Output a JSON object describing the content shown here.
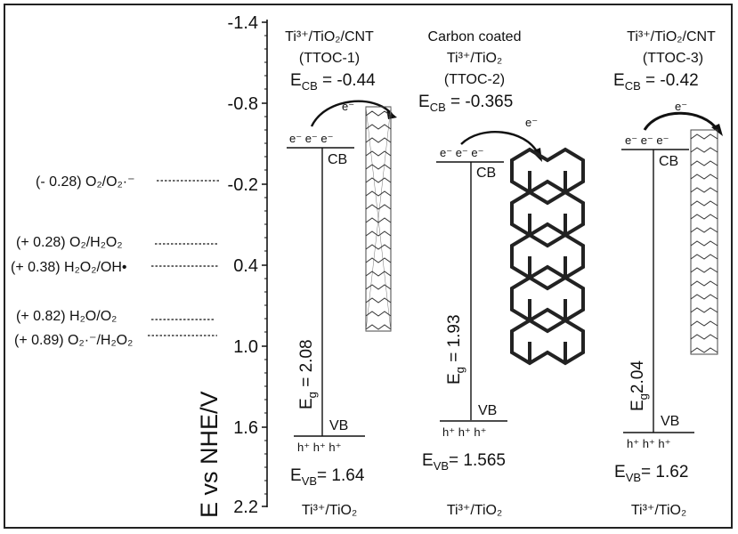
{
  "axis": {
    "label": "E vs NHE/V",
    "ticks": [
      "-1.4",
      "-0.8",
      "-0.2",
      "0.4",
      "1.0",
      "1.6",
      "2.2"
    ]
  },
  "redox_couples": [
    {
      "text": "(- 0.28) O₂/O₂·⁻"
    },
    {
      "text": "(+ 0.28) O₂/H₂O₂"
    },
    {
      "text": "(+ 0.38) H₂O₂/OH•"
    },
    {
      "text": "(+ 0.82) H₂O/O₂"
    },
    {
      "text": "(+ 0.89) O₂·⁻/H₂O₂"
    }
  ],
  "panels": [
    {
      "title_1": "Ti³⁺/TiO₂/CNT",
      "title_2": "",
      "code": "(TTOC-1)",
      "ecb": "Eₕ₆ = -0.44",
      "ecb_main": "E",
      "ecb_sub": "CB",
      "ecb_val": " = -0.44",
      "eg": "2.08",
      "evb_val": "= 1.64",
      "carrier_e": "e⁻  e⁻  e⁻",
      "carrier_h": "h⁺  h⁺  h⁺",
      "cb": "CB",
      "vb": "VB",
      "transfer_e": "e⁻",
      "base": "Ti³⁺/TiO₂"
    },
    {
      "title_1": "Carbon coated",
      "title_2": "Ti³⁺/TiO₂",
      "code": "(TTOC-2)",
      "ecb_main": "E",
      "ecb_sub": "CB",
      "ecb_val": " = -0.365",
      "eg": "1.93",
      "evb_val": "= 1.565",
      "carrier_e": "e⁻  e⁻  e⁻",
      "carrier_h": "h⁺  h⁺  h⁺",
      "cb": "CB",
      "vb": "VB",
      "transfer_e": "e⁻",
      "base": "Ti³⁺/TiO₂"
    },
    {
      "title_1": "Ti³⁺/TiO₂/CNT",
      "title_2": "",
      "code": "(TTOC-3)",
      "ecb_main": "E",
      "ecb_sub": "CB",
      "ecb_val": " = -0.42",
      "eg": "2.04",
      "evb_val": "= 1.62",
      "carrier_e": "e⁻  e⁻  e⁻",
      "carrier_h": "h⁺  h⁺  h⁺",
      "cb": "CB",
      "vb": "VB",
      "transfer_e": "e⁻",
      "base": "Ti³⁺/TiO₂"
    }
  ],
  "eg_symbol": "E",
  "eg_sub": "g",
  "eg_eq": " = ",
  "evb_main": "E",
  "evb_sub": "VB"
}
